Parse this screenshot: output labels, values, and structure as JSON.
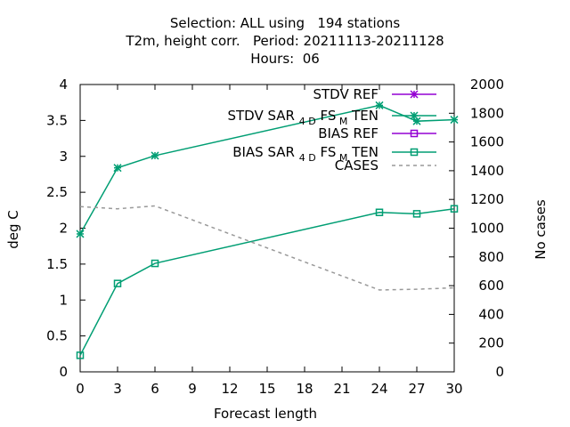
{
  "title_lines": [
    "Selection: ALL using   194 stations",
    "T2m, height corr.   Period: 20211113-20211128",
    "Hours:  06"
  ],
  "chart_data": {
    "type": "line",
    "xlabel": "Forecast length",
    "ylabel": "deg C",
    "y2label": "No cases",
    "xlim": [
      0,
      30
    ],
    "ylim": [
      0,
      4
    ],
    "y2lim": [
      0,
      2000
    ],
    "xticks": [
      0,
      3,
      6,
      9,
      12,
      15,
      18,
      21,
      24,
      27,
      30
    ],
    "yticks": [
      "0",
      "0.5",
      "1",
      "1.5",
      "2",
      "2.5",
      "3",
      "3.5",
      "4"
    ],
    "yticks_values": [
      0,
      0.5,
      1,
      1.5,
      2,
      2.5,
      3,
      3.5,
      4
    ],
    "y2ticks": [
      0,
      200,
      400,
      600,
      800,
      1000,
      1200,
      1400,
      1600,
      1800,
      2000
    ],
    "grid": false,
    "legend_placement": "top-right",
    "series": [
      {
        "name": "STDV REF",
        "axis": "y1",
        "color": "#9400d3",
        "marker": "star",
        "x": [],
        "values": []
      },
      {
        "name": "STDV SAR_4D FS_M TEN",
        "label_main": "STDV SAR",
        "label_sub1": "4 D",
        "label_mid": "FS",
        "label_sub2": "M",
        "label_end": "TEN",
        "axis": "y1",
        "color": "#009e73",
        "marker": "star",
        "x": [
          0,
          3,
          6,
          24,
          27,
          30
        ],
        "values": [
          1.92,
          2.84,
          3.01,
          3.71,
          3.49,
          3.51
        ]
      },
      {
        "name": "BIAS REF",
        "axis": "y1",
        "color": "#9400d3",
        "marker": "square",
        "x": [],
        "values": []
      },
      {
        "name": "BIAS SAR_4D FS_M TEN",
        "label_main": "BIAS SAR",
        "label_sub1": "4 D",
        "label_mid": "FS",
        "label_sub2": "M",
        "label_end": "TEN",
        "axis": "y1",
        "color": "#009e73",
        "marker": "square",
        "x": [
          0,
          3,
          6,
          24,
          27,
          30
        ],
        "values": [
          0.23,
          1.23,
          1.51,
          2.22,
          2.2,
          2.27
        ]
      },
      {
        "name": "CASES",
        "axis": "y2",
        "color": "#999999",
        "marker": "none",
        "dashed": true,
        "x": [
          0,
          3,
          6,
          24,
          27,
          30
        ],
        "values": [
          1150,
          1135,
          1155,
          570,
          575,
          585
        ]
      }
    ]
  }
}
